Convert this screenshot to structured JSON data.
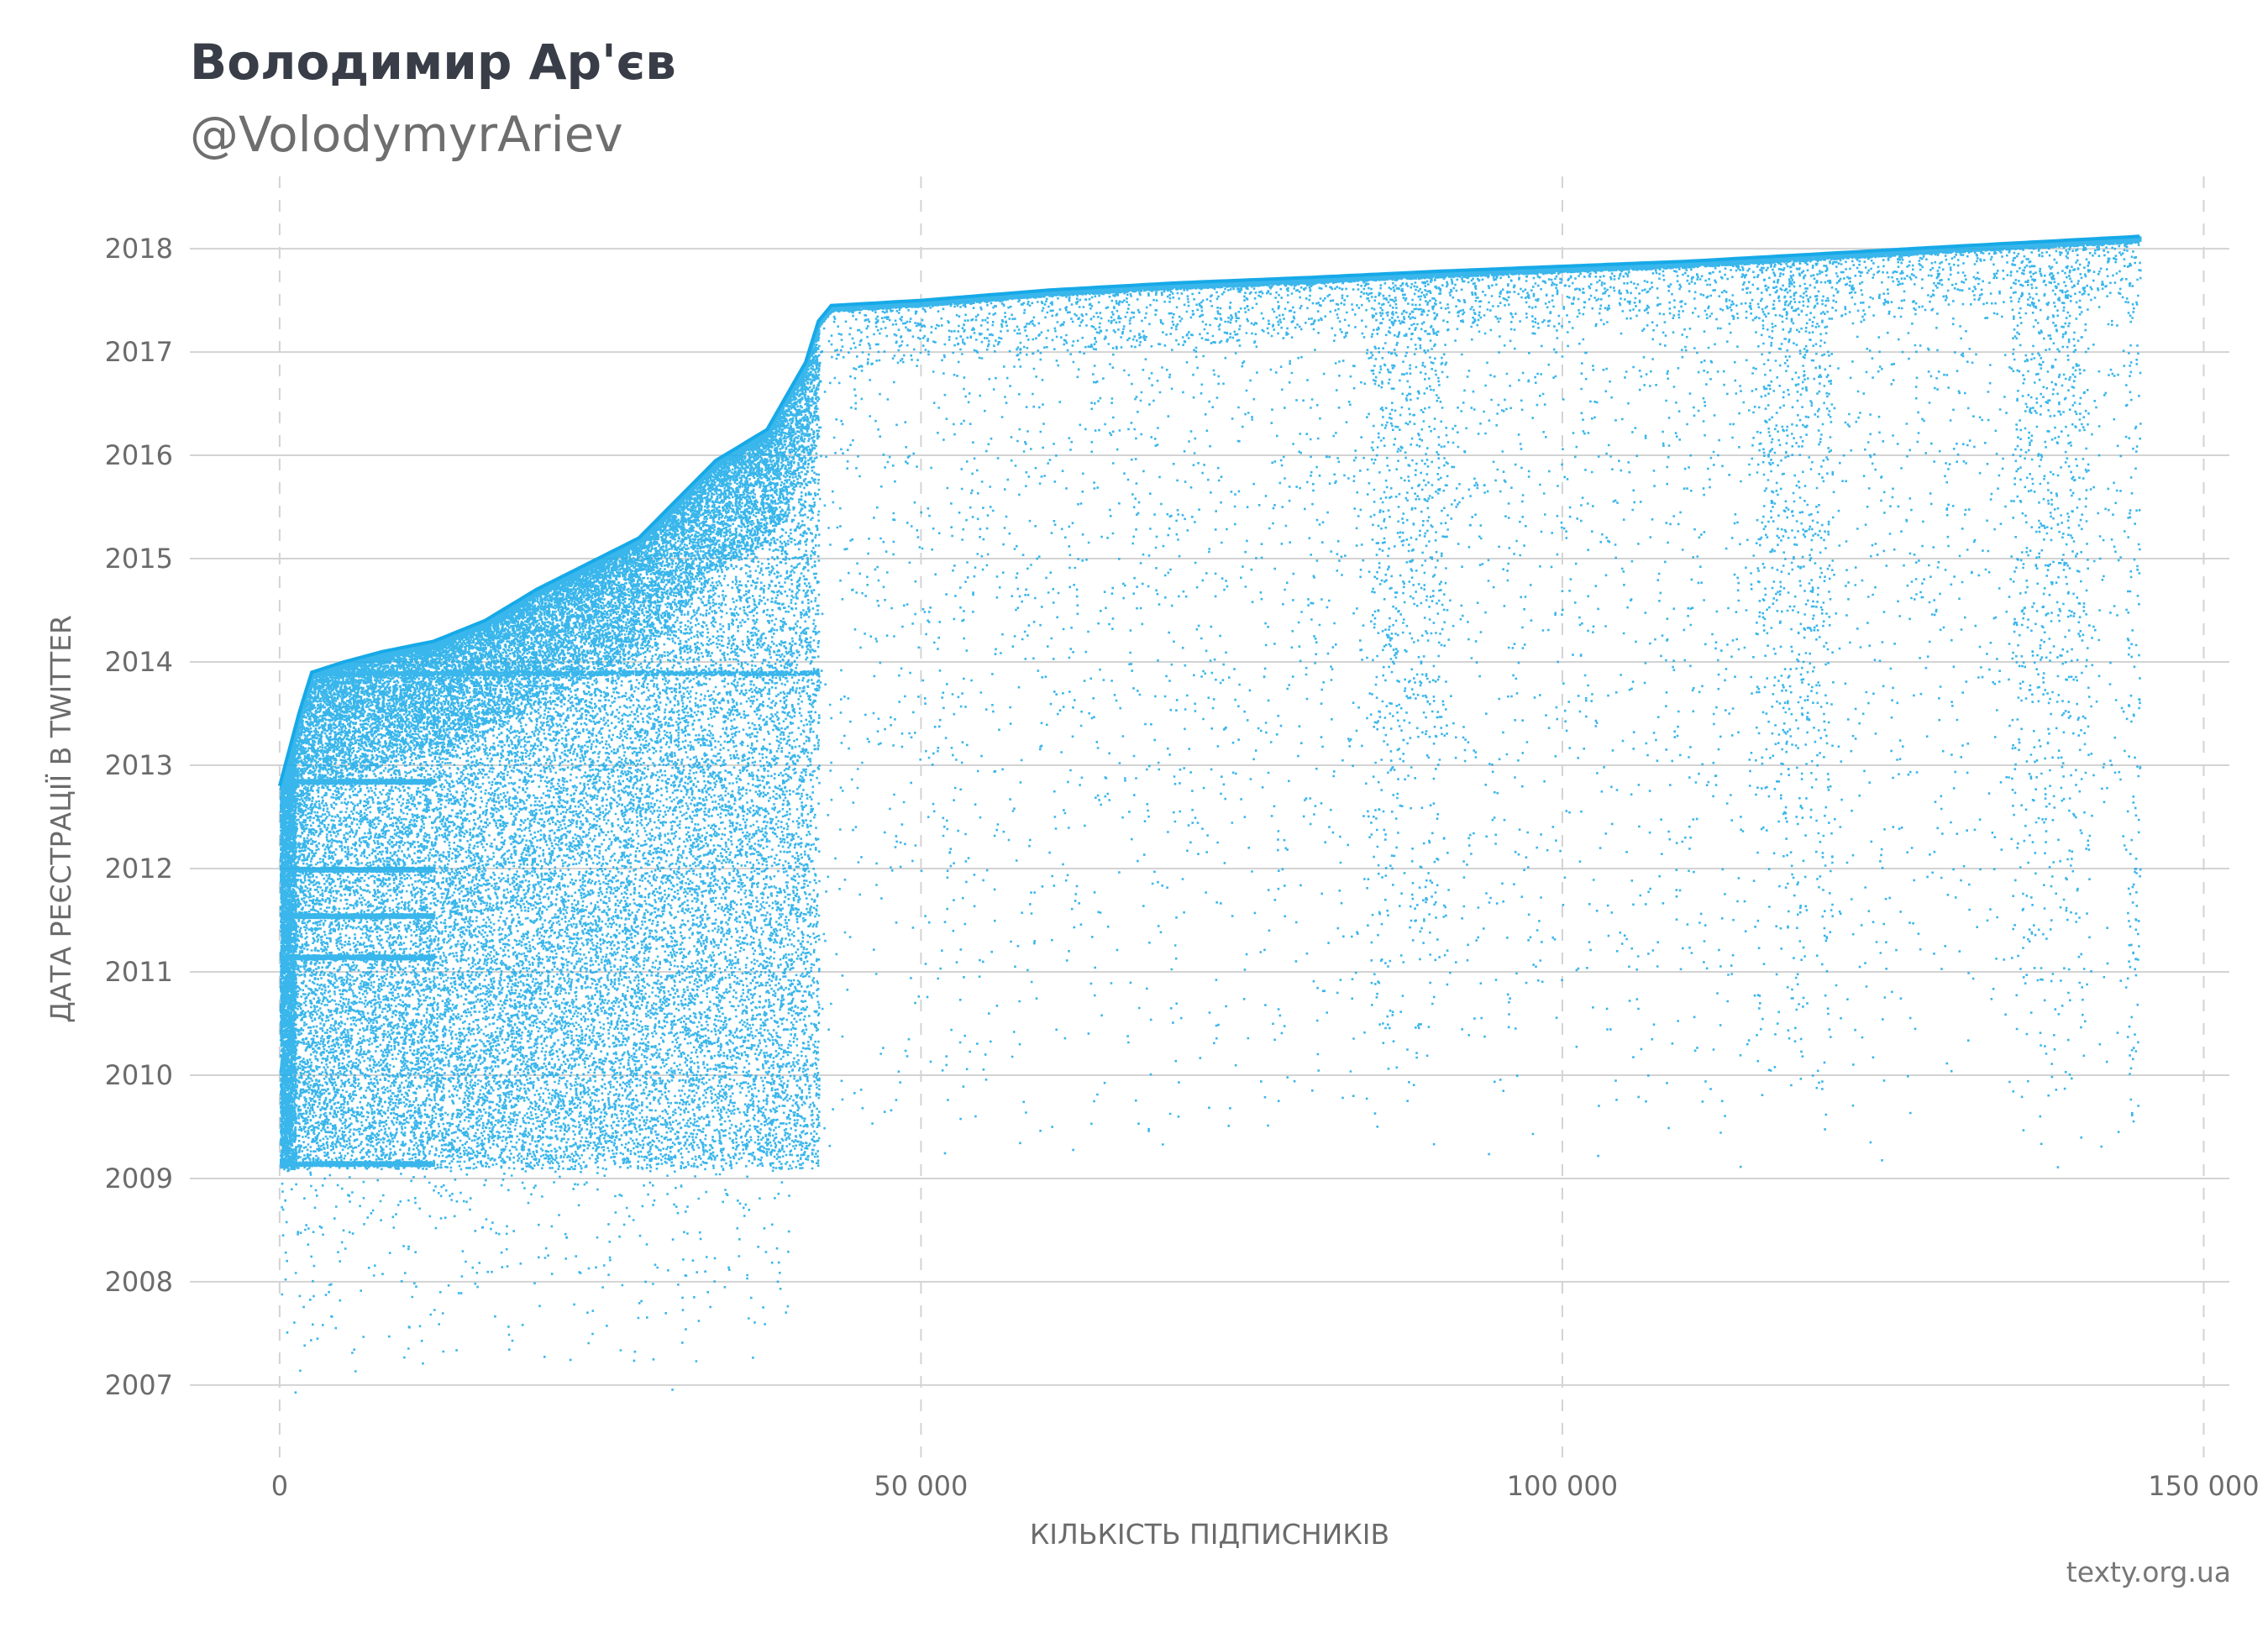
{
  "header": {
    "title": "Володимир Ар'єв",
    "subtitle": "@VolodymyrAriev"
  },
  "footer": {
    "source": "texty.org.ua"
  },
  "colors": {
    "points": "#16a9e8",
    "grid": "#d3d3d3",
    "text": "#6b6b6b",
    "title": "#383d47"
  },
  "chart_data": {
    "type": "scatter",
    "title": "Володимир Ар'єв",
    "subtitle": "@VolodymyrAriev",
    "xlabel": "КІЛЬКІСТЬ ПІДПИСНИКІВ",
    "ylabel": "ДАТА РЕЄСТРАЦІЇ В TWITTER",
    "xlim": [
      -7000,
      152000
    ],
    "ylim": [
      2006.3,
      2018.7
    ],
    "x_ticks": [
      0,
      50000,
      100000,
      150000
    ],
    "x_tick_labels": [
      "0",
      "50 000",
      "100 000",
      "150 000"
    ],
    "y_ticks": [
      2007,
      2008,
      2009,
      2010,
      2011,
      2012,
      2013,
      2014,
      2015,
      2016,
      2017,
      2018
    ],
    "y_tick_labels": [
      "2007",
      "2008",
      "2009",
      "2010",
      "2011",
      "2012",
      "2013",
      "2014",
      "2015",
      "2016",
      "2017",
      "2018"
    ],
    "grid": {
      "horizontal": "solid",
      "vertical": "dashed"
    },
    "legend": "none",
    "frontier": {
      "x": [
        0,
        1500,
        2500,
        5000,
        8000,
        12000,
        16000,
        20000,
        24000,
        28000,
        32000,
        34000,
        38000,
        41000,
        42000,
        43000,
        50000,
        60000,
        70000,
        80000,
        90000,
        100000,
        110000,
        120000,
        130000,
        145000
      ],
      "y": [
        2012.8,
        2013.5,
        2013.9,
        2014.0,
        2014.1,
        2014.2,
        2014.4,
        2014.7,
        2014.95,
        2015.2,
        2015.7,
        2015.95,
        2016.25,
        2016.9,
        2017.3,
        2017.45,
        2017.5,
        2017.6,
        2017.67,
        2017.72,
        2017.78,
        2017.83,
        2017.88,
        2017.95,
        2018.02,
        2018.12
      ]
    },
    "density": {
      "dense_region_x": [
        0,
        42000
      ],
      "dense_region_y": [
        2009.1,
        2014.1
      ],
      "horizontal_bands_y": [
        2009.15,
        2011.15,
        2011.55,
        2012.0,
        2012.85,
        2013.9
      ],
      "vertical_clusters_x": [
        88000,
        118000,
        138000
      ]
    }
  }
}
